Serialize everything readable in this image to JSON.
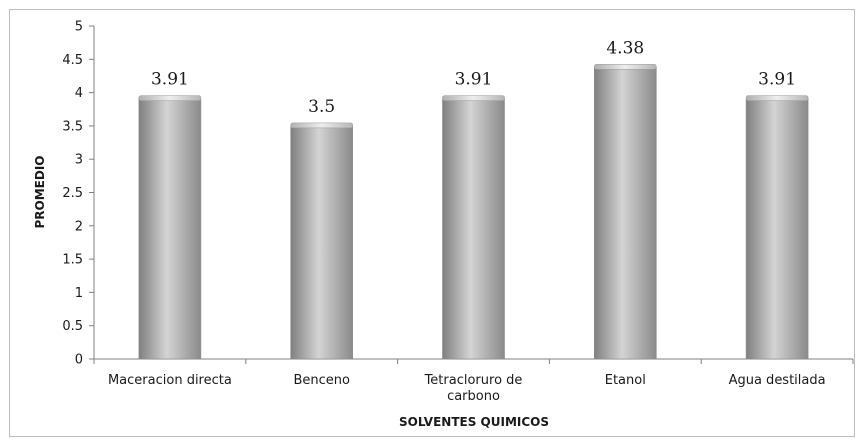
{
  "chart_data": {
    "type": "bar",
    "categories": [
      "Maceracion directa",
      "Benceno",
      "Tetracloruro de carbono",
      "Etanol",
      "Agua destilada"
    ],
    "category_lines": [
      [
        "Maceracion directa"
      ],
      [
        "Benceno"
      ],
      [
        "Tetracloruro de",
        "carbono"
      ],
      [
        "Etanol"
      ],
      [
        "Agua destilada"
      ]
    ],
    "values": [
      3.91,
      3.5,
      3.91,
      4.38,
      3.91
    ],
    "data_labels": [
      "3.91",
      "3.5",
      "3.91",
      "4.38",
      "3.91"
    ],
    "xlabel": "SOLVENTES QUIMICOS",
    "ylabel": "PROMEDIO",
    "ylim": [
      0,
      5
    ],
    "yticks": [
      "0",
      "0.5",
      "1",
      "1.5",
      "2",
      "2.5",
      "3",
      "3.5",
      "4",
      "4.5",
      "5"
    ],
    "grid": false,
    "legend": "none",
    "bar_color": "#a8a8a8"
  }
}
